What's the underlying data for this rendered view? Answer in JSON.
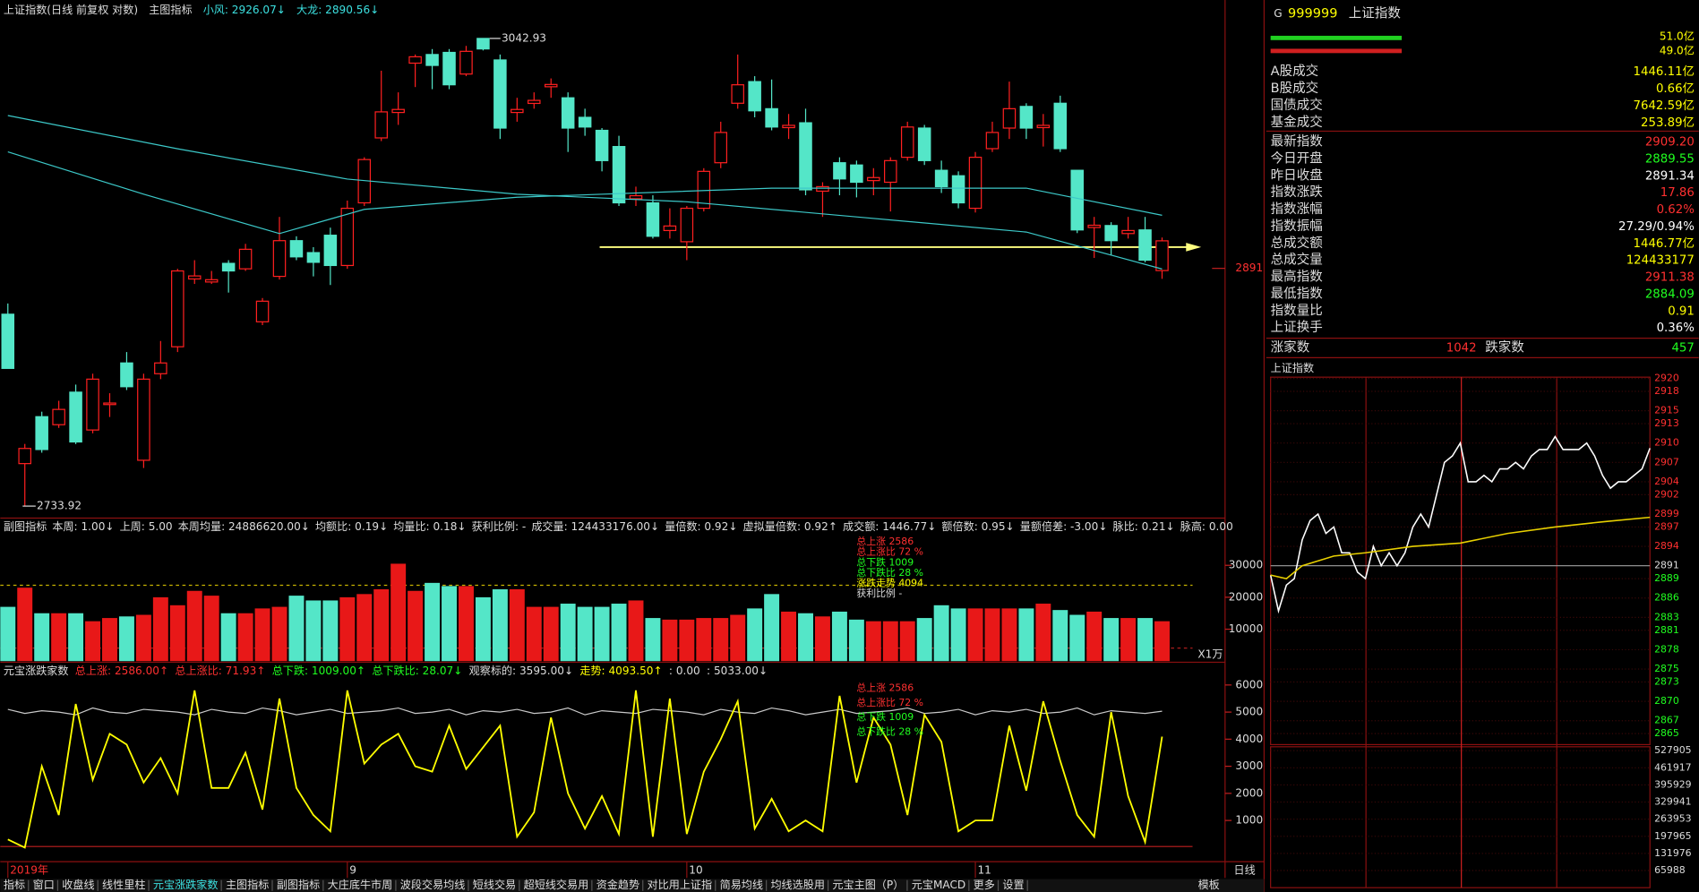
{
  "header": {
    "title": "上证指数(日线 前复权 对数)",
    "indicator": "主图指标",
    "ma1": "小风: 2926.07↓",
    "ma2": "大龙: 2890.56↓"
  },
  "chart_data": [
    {
      "type": "candlestick",
      "open": [
        2860.7,
        2762,
        2793.0,
        2787.7,
        2809.2,
        2784.2,
        2801,
        2828.5,
        2764.2,
        2821.4,
        2839.2,
        2884,
        2882,
        2894.3,
        2890.7,
        2855.7,
        2885.7,
        2909.3,
        2901.4,
        2912.9,
        2892.9,
        2934.3,
        2977.2,
        2994,
        3026.6,
        3032.3,
        3033.7,
        3019.4,
        3042.93,
        3028.7,
        2994,
        3000,
        3011,
        3003.7,
        2990.8,
        2982.2,
        2971.5,
        2937,
        2934.3,
        2916,
        2908.6,
        2930.7,
        2960.8,
        3000.1,
        3014.4,
        2996.5,
        2984,
        2987.2,
        2942,
        2960.8,
        2959.3,
        2949,
        2947.9,
        2964.4,
        2983.7,
        2955.8,
        2952.2,
        2930.7,
        2970.1,
        2983.7,
        2998.0,
        2984,
        3000.1,
        2955.8,
        2918,
        2919.3,
        2914,
        2916.4,
        2889.55
      ],
      "close": [
        2824.9,
        2772,
        2771.3,
        2797.8,
        2776.3,
        2817.8,
        2802,
        2812.8,
        2817.8,
        2828.5,
        2889.3,
        2886,
        2883.5,
        2889.3,
        2903.6,
        2869.3,
        2909.3,
        2898.6,
        2895.0,
        2892.9,
        2930.7,
        2962.9,
        2994.4,
        2996,
        3030.8,
        3025.1,
        3012.3,
        3034.4,
        3036,
        2983.7,
        2996,
        3002,
        3012.5,
        2983.7,
        2984.4,
        2962.2,
        2934.3,
        2939,
        2912.2,
        2919,
        2930.7,
        2955.1,
        2980.8,
        3012.3,
        2995.1,
        2984.4,
        2985.5,
        2942.9,
        2945,
        2950.1,
        2947.9,
        2951,
        2962.2,
        2984.4,
        2962.2,
        2945.0,
        2934.3,
        2964.4,
        2980.8,
        2996.5,
        2983.7,
        2985.5,
        2970.1,
        2916.4,
        2919.5,
        2909.3,
        2916,
        2896.4,
        2909.2
      ],
      "high": [
        2867.8,
        2775,
        2796.3,
        2803.5,
        2814.2,
        2821.4,
        2808.5,
        2835.7,
        2821.4,
        2843.0,
        2890.7,
        2896.4,
        2889.3,
        2896.4,
        2907.2,
        2871.4,
        2925.0,
        2912.2,
        2905.0,
        2917.9,
        2935.8,
        2964.4,
        3021.6,
        3007.3,
        3032.3,
        3035.9,
        3035.9,
        3038.0,
        3042.93,
        3032.3,
        3003.7,
        3007.3,
        3016.5,
        3007.3,
        2996.5,
        2983.7,
        2978.6,
        2945.0,
        2939.3,
        2930.7,
        2932.2,
        2957.2,
        2987.9,
        3032.3,
        3018.0,
        3015.8,
        2993.0,
        2996.5,
        2947.9,
        2964.4,
        2962.2,
        2957.2,
        2964.4,
        2987.9,
        2985.8,
        2962.2,
        2955.1,
        2967.9,
        2987.9,
        3014.4,
        3000.1,
        2993.0,
        3005.1,
        2955.8,
        2925.0,
        2921.5,
        2925.0,
        2925.0,
        2911.38
      ],
      "low": [
        2824.9,
        2733.92,
        2769.2,
        2785.6,
        2774.9,
        2782.0,
        2792.8,
        2810.6,
        2759.1,
        2817.8,
        2835.7,
        2880.7,
        2880.7,
        2875.0,
        2889.3,
        2853.5,
        2883.6,
        2896.4,
        2885.7,
        2880.0,
        2890.7,
        2932.2,
        2975.1,
        2985.8,
        3010.8,
        3009.4,
        3009.4,
        3018.0,
        3035,
        2976.5,
        2987.9,
        2996.5,
        3003.7,
        2967.9,
        2978.6,
        2955.1,
        2932.2,
        2932.2,
        2910.7,
        2910.7,
        2896.4,
        2928.6,
        2957.2,
        2996.5,
        2990.8,
        2982.2,
        2976.5,
        2939.3,
        2925.0,
        2939.3,
        2937.9,
        2939.3,
        2928.6,
        2962.2,
        2959.3,
        2940.8,
        2930.7,
        2927.9,
        2967.9,
        2976.5,
        2976.5,
        2971.5,
        2967.9,
        2914.3,
        2897.9,
        2900.0,
        2910.7,
        2895.0,
        2884.09
      ],
      "up_color": "#ff2020",
      "down_color": "#54e6c8",
      "ylim": [
        2726,
        3054
      ],
      "yticks": [
        2891
      ],
      "high_label": "3042.93",
      "low_label": "2733.92",
      "xticks": [
        {
          "value": 0,
          "label": "2019年"
        },
        {
          "value": 20,
          "label": "9"
        },
        {
          "value": 40,
          "label": "10"
        },
        {
          "value": 57,
          "label": "11"
        }
      ],
      "lines": [
        {
          "color": "#3cc8c8",
          "x": [
            0,
            8,
            16,
            21,
            30,
            45,
            60,
            68
          ],
          "values": [
            2968,
            2940,
            2914,
            2930,
            2938,
            2944,
            2944,
            2926.07
          ]
        },
        {
          "color": "#3cc8c8",
          "x": [
            0,
            10,
            20,
            30,
            40,
            50,
            60,
            68
          ],
          "values": [
            2992,
            2970,
            2950,
            2940,
            2935,
            2925,
            2915,
            2890.56
          ]
        }
      ]
    },
    {
      "type": "bar",
      "title": "副图指标",
      "items": [
        "本周: 1.00↓",
        "上周: 5.00",
        "本周均量: 24886620.00↓",
        "均额比: 0.19↓",
        "均量比: 0.18↓",
        "获利比例: -",
        "成交量: 124433176.00↓",
        "量倍数: 0.92↓",
        "虚拟量倍数: 0.92↑",
        "成交额: 1446.77↓",
        "额倍数: 0.95↓",
        "量额倍差: -3.00↓",
        "脉比: 0.21↓",
        "脉高: 0.00"
      ],
      "legend": [
        "总上涨 2586",
        "总上涨比 72 %",
        "总下跌 1009",
        "总下跌比 28 %",
        "涨跌走势 4094",
        "获利比例 -"
      ],
      "values": [
        17000,
        23000,
        15000,
        15000,
        15000,
        12500,
        13500,
        14000,
        14500,
        20000,
        17500,
        22000,
        20500,
        15000,
        15000,
        16500,
        17000,
        20500,
        19000,
        19000,
        20000,
        21000,
        22500,
        30500,
        22000,
        24500,
        23500,
        23500,
        20000,
        22500,
        22500,
        17000,
        17000,
        18000,
        17000,
        17000,
        18000,
        19000,
        13500,
        13000,
        13000,
        13500,
        13500,
        14500,
        16500,
        21000,
        15500,
        15000,
        14000,
        15500,
        13000,
        12500,
        12500,
        12500,
        13500,
        17500,
        16500,
        16500,
        16500,
        16500,
        16500,
        18000,
        16000,
        14500,
        15500,
        13500,
        13500,
        13500,
        12500
      ],
      "ylim": [
        0,
        39700
      ],
      "yticks": [
        10000,
        20000,
        30000
      ],
      "unit": "X1万"
    },
    {
      "type": "line",
      "title": "元宝涨跌家数",
      "items": [
        "总上涨: 2586.00↑",
        "总上涨比: 71.93↑",
        "总下跌: 1009.00↑",
        "总下跌比: 28.07↓",
        "观察标的: 3595.00↓",
        "走势: 4093.50↑",
        ": 0.00",
        ": 5033.00↓"
      ],
      "legend": [
        "总上涨 2586",
        "总上涨比 72 %",
        "总下跌 1009",
        "总下跌比 28 %"
      ],
      "series": [
        {
          "color": "#ffff00",
          "values": [
            300,
            0,
            3000,
            1200,
            5300,
            2500,
            4200,
            3800,
            2400,
            3300,
            2000,
            5800,
            2200,
            2200,
            3500,
            1400,
            5500,
            2200,
            1200,
            600,
            5800,
            3100,
            3800,
            4200,
            3000,
            2800,
            4500,
            2900,
            3700,
            4500,
            400,
            1300,
            4800,
            2000,
            700,
            1900,
            500,
            5800,
            400,
            5500,
            500,
            2800,
            4000,
            5400,
            700,
            1800,
            600,
            1000,
            600,
            5600,
            2400,
            4800,
            3800,
            1200,
            4900,
            3900,
            600,
            1000,
            1000,
            4500,
            2100,
            5400,
            3200,
            1200,
            400,
            5000,
            1900,
            200,
            4093.5
          ]
        },
        {
          "color": "#c8c8c8",
          "values": [
            5100,
            4950,
            5050,
            5000,
            4900,
            5150,
            5000,
            4950,
            5100,
            5050,
            5000,
            4900,
            5100,
            5000,
            4950,
            5150,
            5050,
            4900,
            5000,
            5100,
            4950,
            5000,
            5050,
            5150,
            4950,
            5000,
            5100,
            4900,
            5050,
            5000,
            5100,
            4950,
            5000,
            5150,
            4900,
            5050,
            5000,
            4950,
            5100,
            5050,
            5000,
            4900,
            5100,
            5000,
            4950,
            5150,
            5050,
            4900,
            5000,
            5100,
            4950,
            5000,
            5050,
            5150,
            4950,
            5000,
            5100,
            4900,
            5050,
            5000,
            5100,
            4950,
            5000,
            5150,
            4900,
            5050,
            5000,
            4950,
            5033
          ]
        }
      ],
      "ylim": [
        -520,
        6720
      ],
      "yticks": [
        1000,
        2000,
        3000,
        4000,
        5000,
        6000
      ],
      "period": "日线"
    },
    {
      "type": "line",
      "title": "上证指数",
      "series": [
        {
          "color": "#ffffff",
          "x": [
            0,
            5,
            10,
            15,
            20,
            25,
            30,
            35,
            40,
            45,
            50,
            55,
            60,
            65,
            70,
            75,
            80,
            85,
            90,
            95,
            100,
            105,
            110,
            115,
            120,
            125,
            130,
            135,
            140,
            145,
            150,
            155,
            160,
            165,
            170,
            175,
            180,
            185,
            190,
            195,
            200,
            205,
            210,
            215,
            220,
            225,
            230,
            235,
            240
          ],
          "values": [
            2889.55,
            2884,
            2888,
            2889,
            2895,
            2898,
            2899,
            2896,
            2897,
            2893,
            2893,
            2890,
            2889,
            2894,
            2891,
            2893,
            2891,
            2893,
            2897,
            2899,
            2897,
            2902,
            2907,
            2908,
            2910,
            2904,
            2904,
            2905,
            2904,
            2906,
            2906,
            2907,
            2906,
            2908,
            2909,
            2909,
            2911,
            2909,
            2909,
            2909,
            2910,
            2908,
            2905,
            2903,
            2904,
            2904,
            2905,
            2906,
            2909.2
          ]
        },
        {
          "color": "#e8d000",
          "x": [
            0,
            10,
            20,
            40,
            60,
            90,
            120,
            150,
            180,
            210,
            240
          ],
          "values": [
            2889.55,
            2889,
            2891,
            2892.5,
            2893,
            2894,
            2894.5,
            2896,
            2897,
            2897.8,
            2898.5
          ]
        }
      ],
      "xlim": [
        0,
        240
      ],
      "ylim": [
        2863.3,
        2920.2
      ],
      "yticks": [
        2920,
        2918,
        2915,
        2913,
        2910,
        2907,
        2904,
        2902,
        2899,
        2897,
        2894,
        2891,
        2889,
        2886,
        2883,
        2881,
        2878,
        2875,
        2873,
        2870,
        2867,
        2865
      ],
      "vol_ylim": [
        0,
        543000
      ],
      "vol_yticks": [
        527905,
        461917,
        395929,
        329941,
        263953,
        197965,
        131976,
        65988
      ]
    }
  ],
  "quote": {
    "code": "999999",
    "name": "上证指数",
    "bar1": "51.0亿",
    "bar2": "49.0亿",
    "rows": [
      {
        "label": "A股成交",
        "value": "1446.11亿",
        "color": "#ffff00"
      },
      {
        "label": "B股成交",
        "value": "0.66亿",
        "color": "#ffff00"
      },
      {
        "label": "国债成交",
        "value": "7642.59亿",
        "color": "#ffff00"
      },
      {
        "label": "基金成交",
        "value": "253.89亿",
        "color": "#ffff00"
      },
      {
        "label": "最新指数",
        "value": "2909.20",
        "color": "#ff3030"
      },
      {
        "label": "今日开盘",
        "value": "2889.55",
        "color": "#20ff20"
      },
      {
        "label": "昨日收盘",
        "value": "2891.34",
        "color": "#ffffff"
      },
      {
        "label": "指数涨跌",
        "value": "17.86",
        "color": "#ff3030"
      },
      {
        "label": "指数涨幅",
        "value": "0.62%",
        "color": "#ff3030"
      },
      {
        "label": "指数振幅",
        "value": "27.29/0.94%",
        "color": "#ffffff"
      },
      {
        "label": "总成交额",
        "value": "1446.77亿",
        "color": "#ffff00"
      },
      {
        "label": "总成交量",
        "value": "124433177",
        "color": "#ffff00"
      },
      {
        "label": "最高指数",
        "value": "2911.38",
        "color": "#ff3030"
      },
      {
        "label": "最低指数",
        "value": "2884.09",
        "color": "#20ff20"
      },
      {
        "label": "指数量比",
        "value": "0.91",
        "color": "#ffff00"
      },
      {
        "label": "上证换手",
        "value": "0.36%",
        "color": "#ffffff"
      }
    ],
    "up_label": "涨家数",
    "up_value": "1042",
    "down_label": "跌家数",
    "down_value": "457"
  },
  "tabs": [
    "指标",
    "窗口",
    "收盘线",
    "线性里柱",
    "元宝涨跌家数",
    "主图指标",
    "副图指标",
    "大庄底牛市周",
    "波段交易均线",
    "短线交易",
    "超短线交易用",
    "资金趋势",
    "对比用上证指",
    "简易均线",
    "均线选股用",
    "元宝主图（P）",
    "元宝MACD",
    "更多",
    "设置"
  ],
  "template": "模板"
}
